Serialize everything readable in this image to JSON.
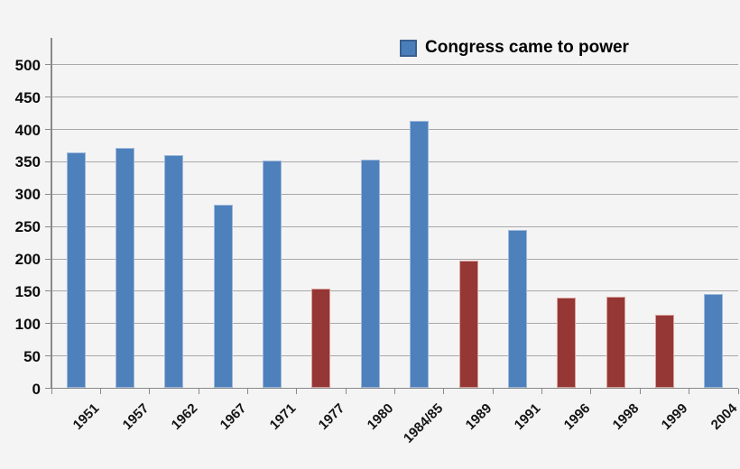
{
  "chart_data": {
    "type": "bar",
    "title": "",
    "xlabel": "",
    "ylabel": "",
    "categories": [
      "1951",
      "1957",
      "1962",
      "1967",
      "1971",
      "1977",
      "1980",
      "1984/85",
      "1989",
      "1991",
      "1996",
      "1998",
      "1999",
      "2004"
    ],
    "values": [
      364,
      371,
      361,
      283,
      352,
      154,
      353,
      413,
      197,
      244,
      140,
      141,
      114,
      145
    ],
    "congress_came_to_power": [
      true,
      true,
      true,
      true,
      true,
      false,
      true,
      true,
      false,
      true,
      false,
      false,
      false,
      true
    ],
    "y_axis": {
      "min": 0,
      "max": 500,
      "tick_interval": 50,
      "tick_labels": [
        "0",
        "50",
        "100",
        "150",
        "200",
        "250",
        "300",
        "350",
        "400",
        "450",
        "500"
      ]
    },
    "grid": "horizontal",
    "legend": {
      "position": "top",
      "label": "Congress came to power"
    },
    "colors": {
      "power_bar_fill": "#4e80bc",
      "power_bar_border": "#9db9da",
      "no_power_bar_fill": "#943735",
      "no_power_bar_border": "#d9a29b",
      "legend_swatch_fill": "#4a7ebb",
      "legend_swatch_border": "#38608f",
      "gridline": "#a8a8a8",
      "axis_line": "#898989",
      "background": "#f5f4f4",
      "text": "#0d0d0d"
    }
  }
}
